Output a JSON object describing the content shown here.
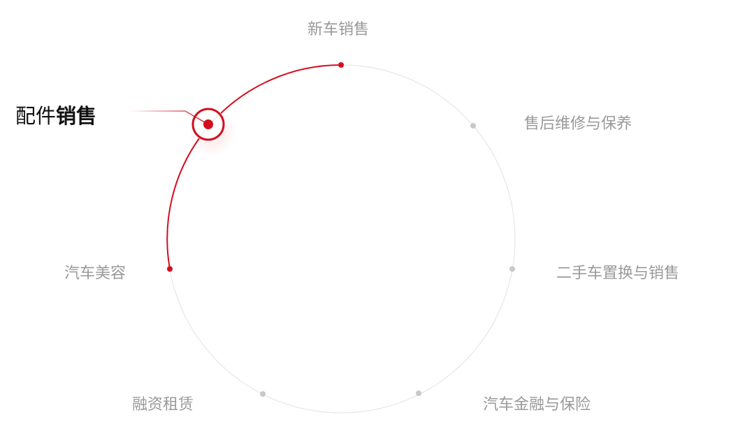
{
  "colors": {
    "accent": "#d40e1e",
    "track": "#e6e6e6",
    "dot": "#c8c8c8",
    "label": "#999999",
    "active_label": "#111111"
  },
  "nodes": [
    {
      "label": "新车销售",
      "state": "visited"
    },
    {
      "label": "售后维修与保养",
      "state": "inactive"
    },
    {
      "label": "二手车置换与销售",
      "state": "inactive"
    },
    {
      "label": "汽车金融与保险",
      "state": "inactive"
    },
    {
      "label": "融资租赁",
      "state": "inactive"
    },
    {
      "label": "汽车美容",
      "state": "visited"
    },
    {
      "label_part1": "配件",
      "label_part2": "销售",
      "state": "active"
    }
  ]
}
